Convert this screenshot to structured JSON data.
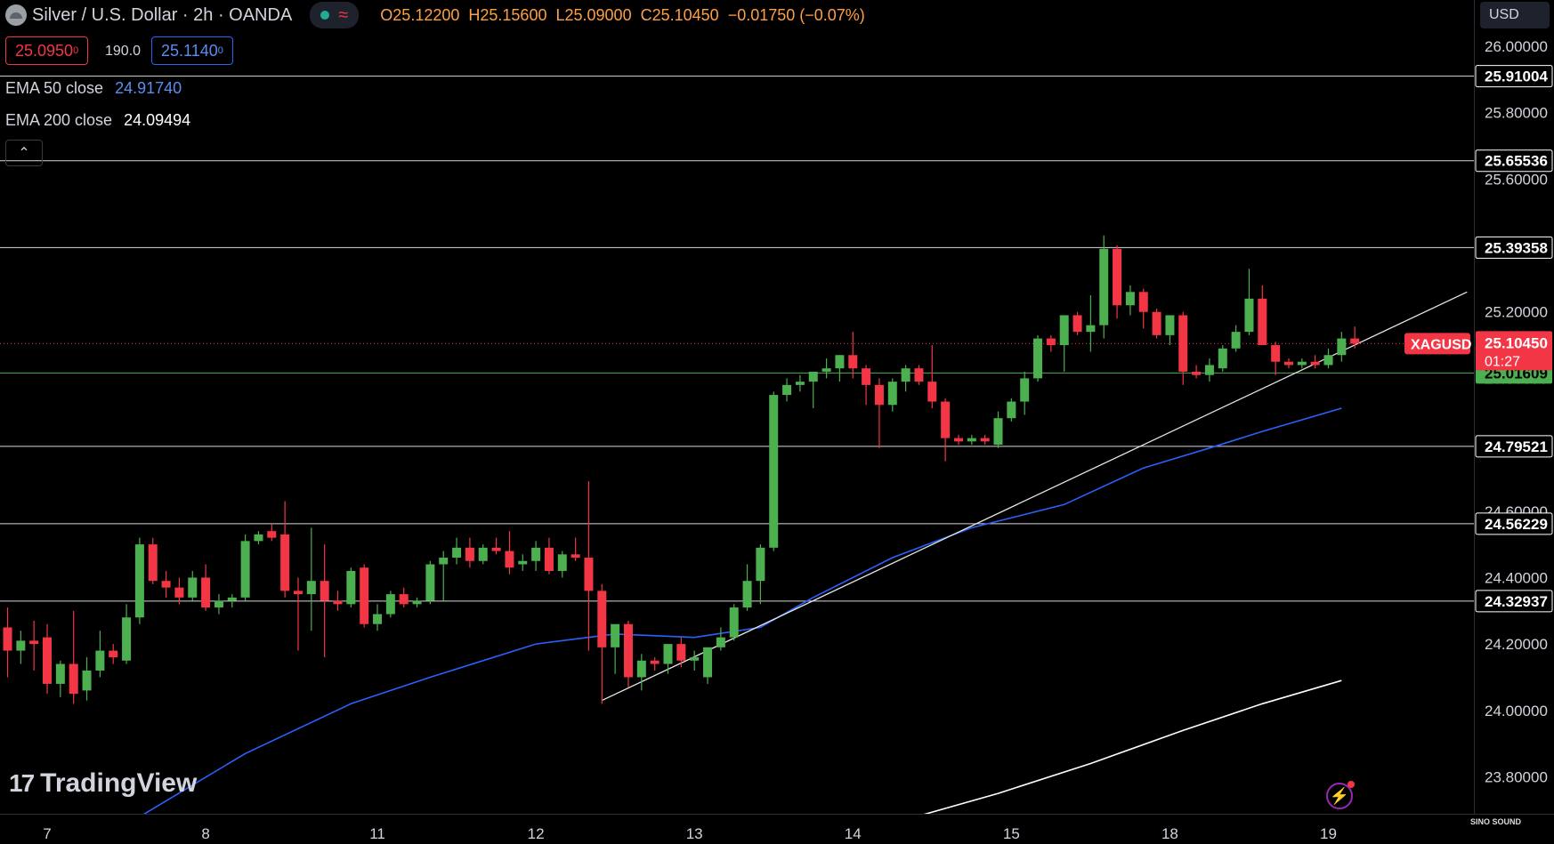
{
  "header": {
    "title": "Silver / U.S. Dollar · 2h · OANDA",
    "open_label": "O",
    "open": "25.12200",
    "high_label": "H",
    "high": "25.15600",
    "low_label": "L",
    "low": "25.09000",
    "close_label": "C",
    "close": "25.10450",
    "change": "−0.01750 (−0.07%)"
  },
  "quote": {
    "bid": "25.0950",
    "bid_sup": "0",
    "spread": "190.0",
    "ask": "25.1140",
    "ask_sup": "0"
  },
  "indicators": {
    "ema50_label": "EMA 50 close",
    "ema50_value": "24.91740",
    "ema200_label": "EMA 200 close",
    "ema200_value": "24.09494"
  },
  "currency": "USD",
  "brand": "TradingView",
  "watermark": "SINO SOUND",
  "colors": {
    "up": "#4caf50",
    "down": "#f23645",
    "ema50": "#2962ff",
    "ema200": "#ffffff",
    "support_line": "#4caf50",
    "hline": "#ffffff",
    "price_tag": "#f23645"
  },
  "chart_data": {
    "type": "candlestick",
    "symbol": "XAGUSD",
    "last_price": "25.10450",
    "countdown": "01:27",
    "ylim": [
      23.71,
      26.05
    ],
    "y_ticks": [
      "23.80000",
      "24.00000",
      "24.20000",
      "24.40000",
      "24.60000",
      "24.80000",
      "25.00000",
      "25.20000",
      "25.40000",
      "25.60000",
      "25.80000",
      "26.00000"
    ],
    "x_ticks": [
      {
        "label": "7",
        "index": 3
      },
      {
        "label": "8",
        "index": 15
      },
      {
        "label": "11",
        "index": 28
      },
      {
        "label": "12",
        "index": 40
      },
      {
        "label": "13",
        "index": 52
      },
      {
        "label": "14",
        "index": 64
      },
      {
        "label": "15",
        "index": 76
      },
      {
        "label": "18",
        "index": 88
      },
      {
        "label": "19",
        "index": 100
      }
    ],
    "horizontal_levels": [
      "25.91004",
      "25.65536",
      "25.39358",
      "25.01609",
      "24.79521",
      "24.56229",
      "24.32937"
    ],
    "support_level": "25.01609",
    "candles": [
      {
        "o": 24.25,
        "h": 24.31,
        "l": 24.1,
        "c": 24.18
      },
      {
        "o": 24.18,
        "h": 24.24,
        "l": 24.14,
        "c": 24.21
      },
      {
        "o": 24.21,
        "h": 24.27,
        "l": 24.12,
        "c": 24.2
      },
      {
        "o": 24.22,
        "h": 24.26,
        "l": 24.05,
        "c": 24.08
      },
      {
        "o": 24.08,
        "h": 24.15,
        "l": 24.04,
        "c": 24.14
      },
      {
        "o": 24.14,
        "h": 24.3,
        "l": 24.02,
        "c": 24.05
      },
      {
        "o": 24.06,
        "h": 24.16,
        "l": 24.03,
        "c": 24.12
      },
      {
        "o": 24.12,
        "h": 24.24,
        "l": 24.1,
        "c": 24.18
      },
      {
        "o": 24.18,
        "h": 24.2,
        "l": 24.14,
        "c": 24.16
      },
      {
        "o": 24.15,
        "h": 24.32,
        "l": 24.14,
        "c": 24.28
      },
      {
        "o": 24.28,
        "h": 24.52,
        "l": 24.26,
        "c": 24.5
      },
      {
        "o": 24.5,
        "h": 24.52,
        "l": 24.38,
        "c": 24.39
      },
      {
        "o": 24.39,
        "h": 24.42,
        "l": 24.34,
        "c": 24.37
      },
      {
        "o": 24.37,
        "h": 24.4,
        "l": 24.32,
        "c": 24.34
      },
      {
        "o": 24.34,
        "h": 24.42,
        "l": 24.33,
        "c": 24.4
      },
      {
        "o": 24.4,
        "h": 24.44,
        "l": 24.3,
        "c": 24.31
      },
      {
        "o": 24.31,
        "h": 24.35,
        "l": 24.29,
        "c": 24.33
      },
      {
        "o": 24.33,
        "h": 24.35,
        "l": 24.31,
        "c": 24.34
      },
      {
        "o": 24.34,
        "h": 24.53,
        "l": 24.33,
        "c": 24.51
      },
      {
        "o": 24.51,
        "h": 24.54,
        "l": 24.5,
        "c": 24.53
      },
      {
        "o": 24.54,
        "h": 24.56,
        "l": 24.51,
        "c": 24.52
      },
      {
        "o": 24.53,
        "h": 24.63,
        "l": 24.34,
        "c": 24.36
      },
      {
        "o": 24.36,
        "h": 24.4,
        "l": 24.18,
        "c": 24.35
      },
      {
        "o": 24.35,
        "h": 24.55,
        "l": 24.24,
        "c": 24.39
      },
      {
        "o": 24.39,
        "h": 24.5,
        "l": 24.16,
        "c": 24.33
      },
      {
        "o": 24.33,
        "h": 24.36,
        "l": 24.3,
        "c": 24.32
      },
      {
        "o": 24.32,
        "h": 24.43,
        "l": 24.31,
        "c": 24.42
      },
      {
        "o": 24.43,
        "h": 24.44,
        "l": 24.25,
        "c": 24.26
      },
      {
        "o": 24.26,
        "h": 24.32,
        "l": 24.24,
        "c": 24.29
      },
      {
        "o": 24.29,
        "h": 24.36,
        "l": 24.28,
        "c": 24.35
      },
      {
        "o": 24.35,
        "h": 24.37,
        "l": 24.31,
        "c": 24.32
      },
      {
        "o": 24.32,
        "h": 24.34,
        "l": 24.31,
        "c": 24.33
      },
      {
        "o": 24.33,
        "h": 24.45,
        "l": 24.32,
        "c": 24.44
      },
      {
        "o": 24.44,
        "h": 24.48,
        "l": 24.33,
        "c": 24.46
      },
      {
        "o": 24.46,
        "h": 24.52,
        "l": 24.44,
        "c": 24.49
      },
      {
        "o": 24.49,
        "h": 24.52,
        "l": 24.43,
        "c": 24.45
      },
      {
        "o": 24.45,
        "h": 24.5,
        "l": 24.44,
        "c": 24.49
      },
      {
        "o": 24.49,
        "h": 24.52,
        "l": 24.47,
        "c": 24.48
      },
      {
        "o": 24.48,
        "h": 24.54,
        "l": 24.41,
        "c": 24.43
      },
      {
        "o": 24.44,
        "h": 24.47,
        "l": 24.42,
        "c": 24.45
      },
      {
        "o": 24.45,
        "h": 24.51,
        "l": 24.42,
        "c": 24.49
      },
      {
        "o": 24.49,
        "h": 24.52,
        "l": 24.41,
        "c": 24.42
      },
      {
        "o": 24.42,
        "h": 24.48,
        "l": 24.4,
        "c": 24.47
      },
      {
        "o": 24.47,
        "h": 24.52,
        "l": 24.45,
        "c": 24.46
      },
      {
        "o": 24.46,
        "h": 24.69,
        "l": 24.18,
        "c": 24.36
      },
      {
        "o": 24.36,
        "h": 24.38,
        "l": 24.02,
        "c": 24.19
      },
      {
        "o": 24.19,
        "h": 24.24,
        "l": 24.11,
        "c": 24.26
      },
      {
        "o": 24.26,
        "h": 24.27,
        "l": 24.07,
        "c": 24.1
      },
      {
        "o": 24.1,
        "h": 24.17,
        "l": 24.06,
        "c": 24.15
      },
      {
        "o": 24.15,
        "h": 24.16,
        "l": 24.12,
        "c": 24.14
      },
      {
        "o": 24.14,
        "h": 24.2,
        "l": 24.11,
        "c": 24.2
      },
      {
        "o": 24.2,
        "h": 24.22,
        "l": 24.13,
        "c": 24.15
      },
      {
        "o": 24.15,
        "h": 24.18,
        "l": 24.12,
        "c": 24.16
      },
      {
        "o": 24.1,
        "h": 24.19,
        "l": 24.08,
        "c": 24.19
      },
      {
        "o": 24.19,
        "h": 24.25,
        "l": 24.18,
        "c": 24.22
      },
      {
        "o": 24.22,
        "h": 24.32,
        "l": 24.21,
        "c": 24.31
      },
      {
        "o": 24.31,
        "h": 24.44,
        "l": 24.3,
        "c": 24.39
      },
      {
        "o": 24.39,
        "h": 24.5,
        "l": 24.32,
        "c": 24.49
      },
      {
        "o": 24.49,
        "h": 24.96,
        "l": 24.48,
        "c": 24.95
      },
      {
        "o": 24.95,
        "h": 25.0,
        "l": 24.93,
        "c": 24.98
      },
      {
        "o": 24.98,
        "h": 25.01,
        "l": 24.96,
        "c": 24.99
      },
      {
        "o": 24.99,
        "h": 25.02,
        "l": 24.91,
        "c": 25.02
      },
      {
        "o": 25.02,
        "h": 25.06,
        "l": 25.0,
        "c": 25.03
      },
      {
        "o": 25.03,
        "h": 25.07,
        "l": 24.99,
        "c": 25.07
      },
      {
        "o": 25.07,
        "h": 25.14,
        "l": 25.0,
        "c": 25.03
      },
      {
        "o": 25.03,
        "h": 25.04,
        "l": 24.92,
        "c": 24.98
      },
      {
        "o": 24.98,
        "h": 25.0,
        "l": 24.79,
        "c": 24.92
      },
      {
        "o": 24.92,
        "h": 25.0,
        "l": 24.9,
        "c": 24.99
      },
      {
        "o": 24.99,
        "h": 25.04,
        "l": 24.96,
        "c": 25.03
      },
      {
        "o": 25.03,
        "h": 25.04,
        "l": 24.98,
        "c": 24.99
      },
      {
        "o": 24.99,
        "h": 25.1,
        "l": 24.91,
        "c": 24.93
      },
      {
        "o": 24.93,
        "h": 24.94,
        "l": 24.75,
        "c": 24.82
      },
      {
        "o": 24.82,
        "h": 24.83,
        "l": 24.8,
        "c": 24.81
      },
      {
        "o": 24.81,
        "h": 24.83,
        "l": 24.8,
        "c": 24.82
      },
      {
        "o": 24.82,
        "h": 24.83,
        "l": 24.8,
        "c": 24.81
      },
      {
        "o": 24.8,
        "h": 24.9,
        "l": 24.79,
        "c": 24.88
      },
      {
        "o": 24.88,
        "h": 24.94,
        "l": 24.87,
        "c": 24.93
      },
      {
        "o": 24.93,
        "h": 25.02,
        "l": 24.89,
        "c": 25.0
      },
      {
        "o": 25.0,
        "h": 25.13,
        "l": 24.99,
        "c": 25.12
      },
      {
        "o": 25.12,
        "h": 25.13,
        "l": 25.08,
        "c": 25.1
      },
      {
        "o": 25.1,
        "h": 25.19,
        "l": 25.02,
        "c": 25.19
      },
      {
        "o": 25.19,
        "h": 25.2,
        "l": 25.13,
        "c": 25.14
      },
      {
        "o": 25.14,
        "h": 25.25,
        "l": 25.08,
        "c": 25.16
      },
      {
        "o": 25.16,
        "h": 25.43,
        "l": 25.12,
        "c": 25.39
      },
      {
        "o": 25.39,
        "h": 25.4,
        "l": 25.18,
        "c": 25.22
      },
      {
        "o": 25.22,
        "h": 25.28,
        "l": 25.19,
        "c": 25.26
      },
      {
        "o": 25.26,
        "h": 25.27,
        "l": 25.15,
        "c": 25.2
      },
      {
        "o": 25.2,
        "h": 25.21,
        "l": 25.12,
        "c": 25.13
      },
      {
        "o": 25.13,
        "h": 25.19,
        "l": 25.1,
        "c": 25.19
      },
      {
        "o": 25.19,
        "h": 25.2,
        "l": 24.98,
        "c": 25.02
      },
      {
        "o": 25.02,
        "h": 25.04,
        "l": 25.0,
        "c": 25.01
      },
      {
        "o": 25.01,
        "h": 25.06,
        "l": 24.99,
        "c": 25.04
      },
      {
        "o": 25.03,
        "h": 25.1,
        "l": 25.02,
        "c": 25.09
      },
      {
        "o": 25.09,
        "h": 25.16,
        "l": 25.08,
        "c": 25.14
      },
      {
        "o": 25.14,
        "h": 25.33,
        "l": 25.13,
        "c": 25.24
      },
      {
        "o": 25.24,
        "h": 25.28,
        "l": 25.1,
        "c": 25.1
      },
      {
        "o": 25.1,
        "h": 25.11,
        "l": 25.01,
        "c": 25.05
      },
      {
        "o": 25.05,
        "h": 25.06,
        "l": 25.03,
        "c": 25.04
      },
      {
        "o": 25.04,
        "h": 25.06,
        "l": 25.03,
        "c": 25.05
      },
      {
        "o": 25.05,
        "h": 25.07,
        "l": 25.03,
        "c": 25.04
      },
      {
        "o": 25.04,
        "h": 25.09,
        "l": 25.03,
        "c": 25.07
      },
      {
        "o": 25.07,
        "h": 25.14,
        "l": 25.05,
        "c": 25.12
      },
      {
        "o": 25.12,
        "h": 25.156,
        "l": 25.09,
        "c": 25.1045
      }
    ],
    "ema50": [
      {
        "i": 10,
        "v": 23.68
      },
      {
        "i": 18,
        "v": 23.87
      },
      {
        "i": 26,
        "v": 24.02
      },
      {
        "i": 32,
        "v": 24.1
      },
      {
        "i": 40,
        "v": 24.2
      },
      {
        "i": 46,
        "v": 24.23
      },
      {
        "i": 52,
        "v": 24.22
      },
      {
        "i": 57,
        "v": 24.25
      },
      {
        "i": 61,
        "v": 24.34
      },
      {
        "i": 67,
        "v": 24.46
      },
      {
        "i": 73,
        "v": 24.55
      },
      {
        "i": 80,
        "v": 24.62
      },
      {
        "i": 86,
        "v": 24.73
      },
      {
        "i": 91,
        "v": 24.79
      },
      {
        "i": 95,
        "v": 24.84
      },
      {
        "i": 101,
        "v": 24.91
      }
    ],
    "ema200": [
      {
        "i": 67,
        "v": 23.66
      },
      {
        "i": 75,
        "v": 23.75
      },
      {
        "i": 82,
        "v": 23.84
      },
      {
        "i": 89,
        "v": 23.94
      },
      {
        "i": 95,
        "v": 24.02
      },
      {
        "i": 101,
        "v": 24.09
      }
    ],
    "trendline": [
      {
        "i": 45,
        "v": 24.03
      },
      {
        "i": 110.5,
        "v": 25.26
      }
    ]
  }
}
